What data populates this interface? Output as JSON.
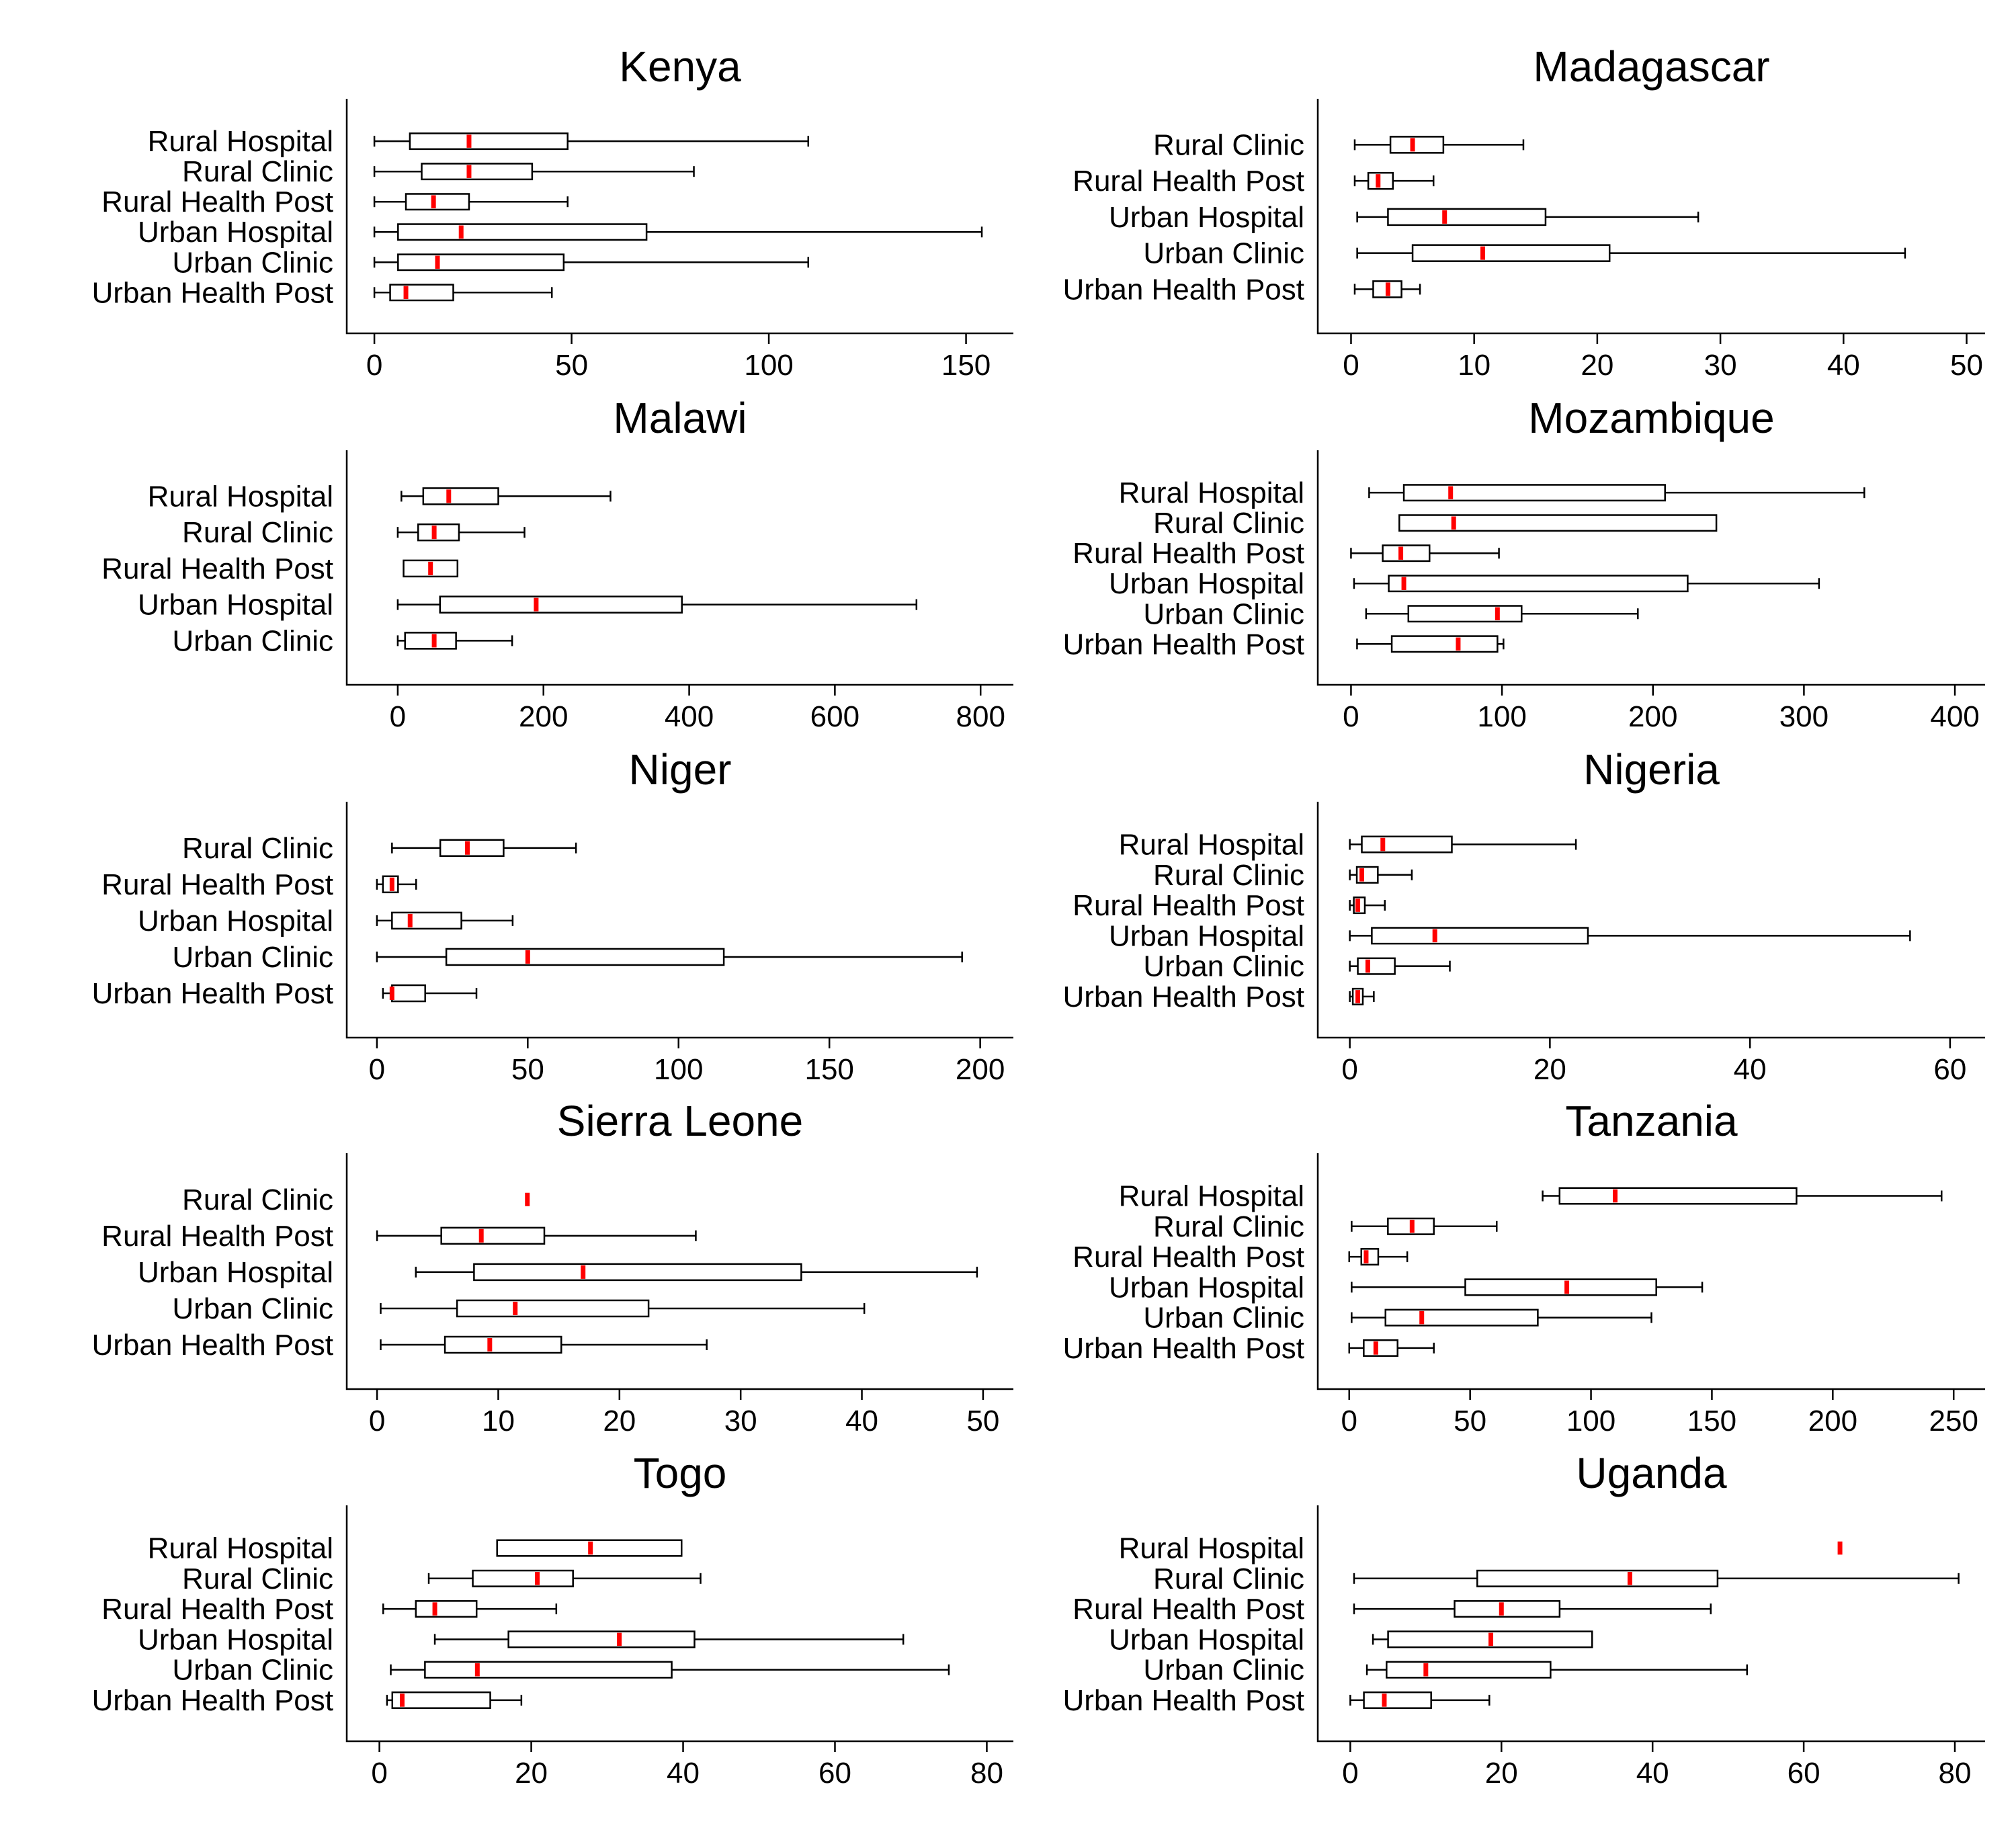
{
  "colors": {
    "median": "#ff0000",
    "box_stroke": "#000000",
    "axis": "#000000",
    "background": "#ffffff"
  },
  "chart_data": [
    {
      "type": "boxplot",
      "title": "Kenya",
      "xticks": [
        0,
        50,
        100,
        150
      ],
      "xlim": [
        -7,
        162
      ],
      "orientation": "horizontal",
      "categories": [
        "Rural Hospital",
        "Rural Clinic",
        "Rural Health Post",
        "Urban Hospital",
        "Urban Clinic",
        "Urban Health Post"
      ],
      "boxes": [
        {
          "label": "Rural Hospital",
          "min": 0,
          "q1": 9,
          "median": 24,
          "q3": 49,
          "max": 110
        },
        {
          "label": "Rural Clinic",
          "min": 0,
          "q1": 12,
          "median": 24,
          "q3": 40,
          "max": 81
        },
        {
          "label": "Rural Health Post",
          "min": 0,
          "q1": 8,
          "median": 15,
          "q3": 24,
          "max": 49
        },
        {
          "label": "Urban Hospital",
          "min": 0,
          "q1": 6,
          "median": 22,
          "q3": 69,
          "max": 154
        },
        {
          "label": "Urban Clinic",
          "min": 0,
          "q1": 6,
          "median": 16,
          "q3": 48,
          "max": 110
        },
        {
          "label": "Urban Health Post",
          "min": 0,
          "q1": 4,
          "median": 8,
          "q3": 20,
          "max": 45
        }
      ]
    },
    {
      "type": "boxplot",
      "title": "Madagascar",
      "xticks": [
        0,
        10,
        20,
        30,
        40,
        50
      ],
      "xlim": [
        -2.7,
        51.5
      ],
      "orientation": "horizontal",
      "categories": [
        "Rural Clinic",
        "Rural Health Post",
        "Urban Hospital",
        "Urban Clinic",
        "Urban Health Post"
      ],
      "boxes": [
        {
          "label": "Rural Clinic",
          "min": 0.3,
          "q1": 3.2,
          "median": 5,
          "q3": 7.5,
          "max": 14
        },
        {
          "label": "Rural Health Post",
          "min": 0.3,
          "q1": 1.4,
          "median": 2.2,
          "q3": 3.4,
          "max": 6.7
        },
        {
          "label": "Urban Hospital",
          "min": 0.5,
          "q1": 3,
          "median": 7.6,
          "q3": 15.8,
          "max": 28.2
        },
        {
          "label": "Urban Clinic",
          "min": 0.5,
          "q1": 5,
          "median": 10.7,
          "q3": 21,
          "max": 45
        },
        {
          "label": "Urban Health Post",
          "min": 0.3,
          "q1": 1.8,
          "median": 3,
          "q3": 4.1,
          "max": 5.6
        }
      ]
    },
    {
      "type": "boxplot",
      "title": "Malawi",
      "xticks": [
        0,
        200,
        400,
        600,
        800
      ],
      "xlim": [
        -70,
        845
      ],
      "orientation": "horizontal",
      "categories": [
        "Rural Hospital",
        "Rural Clinic",
        "Rural Health Post",
        "Urban Hospital",
        "Urban Clinic"
      ],
      "boxes": [
        {
          "label": "Rural Hospital",
          "min": 5,
          "q1": 35,
          "median": 70,
          "q3": 138,
          "max": 292
        },
        {
          "label": "Rural Clinic",
          "min": 0,
          "q1": 28,
          "median": 50,
          "q3": 84,
          "max": 174
        },
        {
          "label": "Rural Health Post",
          "min": 8,
          "q1": 8,
          "median": 45,
          "q3": 82,
          "max": 82
        },
        {
          "label": "Urban Hospital",
          "min": 0,
          "q1": 58,
          "median": 190,
          "q3": 390,
          "max": 712
        },
        {
          "label": "Urban Clinic",
          "min": 0,
          "q1": 10,
          "median": 50,
          "q3": 80,
          "max": 157
        }
      ]
    },
    {
      "type": "boxplot",
      "title": "Mozambique",
      "xticks": [
        0,
        100,
        200,
        300,
        400
      ],
      "xlim": [
        -22,
        420
      ],
      "orientation": "horizontal",
      "categories": [
        "Rural Hospital",
        "Rural Clinic",
        "Rural Health Post",
        "Urban Hospital",
        "Urban Clinic",
        "Urban Health Post"
      ],
      "boxes": [
        {
          "label": "Rural Hospital",
          "min": 12,
          "q1": 35,
          "median": 66,
          "q3": 208,
          "max": 340
        },
        {
          "label": "Rural Clinic",
          "min": 32,
          "q1": 32,
          "median": 68,
          "q3": 242,
          "max": 242
        },
        {
          "label": "Rural Health Post",
          "min": 0,
          "q1": 21,
          "median": 33,
          "q3": 52,
          "max": 98
        },
        {
          "label": "Urban Hospital",
          "min": 2,
          "q1": 25,
          "median": 35,
          "q3": 223,
          "max": 310
        },
        {
          "label": "Urban Clinic",
          "min": 10,
          "q1": 38,
          "median": 97,
          "q3": 113,
          "max": 190
        },
        {
          "label": "Urban Health Post",
          "min": 4,
          "q1": 27,
          "median": 71,
          "q3": 97,
          "max": 101
        }
      ]
    },
    {
      "type": "boxplot",
      "title": "Niger",
      "xticks": [
        0,
        50,
        100,
        150,
        200
      ],
      "xlim": [
        -10,
        211
      ],
      "orientation": "horizontal",
      "categories": [
        "Rural Clinic",
        "Rural Health Post",
        "Urban Hospital",
        "Urban Clinic",
        "Urban Health Post"
      ],
      "boxes": [
        {
          "label": "Rural Clinic",
          "min": 5,
          "q1": 21,
          "median": 30,
          "q3": 42,
          "max": 66
        },
        {
          "label": "Rural Health Post",
          "min": 0,
          "q1": 2,
          "median": 5,
          "q3": 7,
          "max": 13
        },
        {
          "label": "Urban Hospital",
          "min": 0,
          "q1": 5,
          "median": 11,
          "q3": 28,
          "max": 45
        },
        {
          "label": "Urban Clinic",
          "min": 0,
          "q1": 23,
          "median": 50,
          "q3": 115,
          "max": 194
        },
        {
          "label": "Urban Health Post",
          "min": 2,
          "q1": 5,
          "median": 5,
          "q3": 16,
          "max": 33
        }
      ]
    },
    {
      "type": "boxplot",
      "title": "Nigeria",
      "xticks": [
        0,
        20,
        40,
        60
      ],
      "xlim": [
        -3.2,
        63.5
      ],
      "orientation": "horizontal",
      "categories": [
        "Rural Hospital",
        "Rural Clinic",
        "Rural Health Post",
        "Urban Hospital",
        "Urban Clinic",
        "Urban Health Post"
      ],
      "boxes": [
        {
          "label": "Rural Hospital",
          "min": 0,
          "q1": 1.2,
          "median": 3.3,
          "q3": 10.2,
          "max": 22.6
        },
        {
          "label": "Rural Clinic",
          "min": 0,
          "q1": 0.7,
          "median": 1.2,
          "q3": 2.8,
          "max": 6.2
        },
        {
          "label": "Rural Health Post",
          "min": 0,
          "q1": 0.4,
          "median": 0.8,
          "q3": 1.5,
          "max": 3.5
        },
        {
          "label": "Urban Hospital",
          "min": 0,
          "q1": 2.2,
          "median": 8.5,
          "q3": 23.8,
          "max": 56
        },
        {
          "label": "Urban Clinic",
          "min": 0,
          "q1": 0.8,
          "median": 1.8,
          "q3": 4.5,
          "max": 10
        },
        {
          "label": "Urban Health Post",
          "min": 0,
          "q1": 0.3,
          "median": 0.8,
          "q3": 1.3,
          "max": 2.4
        }
      ]
    },
    {
      "type": "boxplot",
      "title": "Sierra Leone",
      "xticks": [
        0,
        10,
        20,
        30,
        40,
        50
      ],
      "xlim": [
        -2.5,
        52.5
      ],
      "orientation": "horizontal",
      "categories": [
        "Rural Clinic",
        "Rural Health Post",
        "Urban Hospital",
        "Urban Clinic",
        "Urban Health Post"
      ],
      "boxes": [
        {
          "label": "Rural Clinic",
          "min": 12.4,
          "q1": 12.4,
          "median": 12.4,
          "q3": 12.4,
          "max": 12.4
        },
        {
          "label": "Rural Health Post",
          "min": 0,
          "q1": 5.3,
          "median": 8.6,
          "q3": 13.8,
          "max": 26.3
        },
        {
          "label": "Urban Hospital",
          "min": 3.2,
          "q1": 8,
          "median": 17,
          "q3": 35,
          "max": 49.5
        },
        {
          "label": "Urban Clinic",
          "min": 0.3,
          "q1": 6.6,
          "median": 11.4,
          "q3": 22.4,
          "max": 40.2
        },
        {
          "label": "Urban Health Post",
          "min": 0.3,
          "q1": 5.6,
          "median": 9.3,
          "q3": 15.2,
          "max": 27.2
        }
      ]
    },
    {
      "type": "boxplot",
      "title": "Tanzania",
      "xticks": [
        0,
        50,
        100,
        150,
        200,
        250
      ],
      "xlim": [
        -13,
        263
      ],
      "orientation": "horizontal",
      "categories": [
        "Rural Hospital",
        "Rural Clinic",
        "Rural Health Post",
        "Urban Hospital",
        "Urban Clinic",
        "Urban Health Post"
      ],
      "boxes": [
        {
          "label": "Rural Hospital",
          "min": 80,
          "q1": 87,
          "median": 110,
          "q3": 185,
          "max": 245
        },
        {
          "label": "Rural Clinic",
          "min": 1,
          "q1": 16,
          "median": 26,
          "q3": 35,
          "max": 61
        },
        {
          "label": "Rural Health Post",
          "min": 0,
          "q1": 5,
          "median": 7,
          "q3": 12,
          "max": 24
        },
        {
          "label": "Urban Hospital",
          "min": 1,
          "q1": 48,
          "median": 90,
          "q3": 127,
          "max": 146
        },
        {
          "label": "Urban Clinic",
          "min": 1,
          "q1": 15,
          "median": 30,
          "q3": 78,
          "max": 125
        },
        {
          "label": "Urban Health Post",
          "min": 0,
          "q1": 6,
          "median": 11,
          "q3": 20,
          "max": 35
        }
      ]
    },
    {
      "type": "boxplot",
      "title": "Togo",
      "xticks": [
        0,
        20,
        40,
        60,
        80
      ],
      "xlim": [
        -4.3,
        83.5
      ],
      "orientation": "horizontal",
      "categories": [
        "Rural Hospital",
        "Rural Clinic",
        "Rural Health Post",
        "Urban Hospital",
        "Urban Clinic",
        "Urban Health Post"
      ],
      "boxes": [
        {
          "label": "Rural Hospital",
          "min": 15.5,
          "q1": 15.5,
          "median": 27.8,
          "q3": 39.8,
          "max": 39.8
        },
        {
          "label": "Rural Clinic",
          "min": 6.5,
          "q1": 12.3,
          "median": 20.8,
          "q3": 25.5,
          "max": 42.3
        },
        {
          "label": "Rural Health Post",
          "min": 0.5,
          "q1": 4.8,
          "median": 7.3,
          "q3": 12.8,
          "max": 23.3
        },
        {
          "label": "Urban Hospital",
          "min": 7.3,
          "q1": 17,
          "median": 31.6,
          "q3": 41.5,
          "max": 69
        },
        {
          "label": "Urban Clinic",
          "min": 1.5,
          "q1": 6,
          "median": 12.9,
          "q3": 38.5,
          "max": 75
        },
        {
          "label": "Urban Health Post",
          "min": 1,
          "q1": 1.7,
          "median": 3,
          "q3": 14.6,
          "max": 18.7
        }
      ]
    },
    {
      "type": "boxplot",
      "title": "Uganda",
      "xticks": [
        0,
        20,
        40,
        60,
        80
      ],
      "xlim": [
        -4.3,
        84
      ],
      "orientation": "horizontal",
      "categories": [
        "Rural Hospital",
        "Rural Clinic",
        "Rural Health Post",
        "Urban Hospital",
        "Urban Clinic",
        "Urban Health Post"
      ],
      "boxes": [
        {
          "label": "Rural Hospital",
          "min": 64.8,
          "q1": 64.8,
          "median": 64.8,
          "q3": 64.8,
          "max": 64.8
        },
        {
          "label": "Rural Clinic",
          "min": 0.5,
          "q1": 16.8,
          "median": 37,
          "q3": 48.6,
          "max": 80.5
        },
        {
          "label": "Rural Health Post",
          "min": 0.5,
          "q1": 13.8,
          "median": 20,
          "q3": 27.7,
          "max": 47.7
        },
        {
          "label": "Urban Hospital",
          "min": 3,
          "q1": 5,
          "median": 18.6,
          "q3": 32,
          "max": 32
        },
        {
          "label": "Urban Clinic",
          "min": 2.2,
          "q1": 4.8,
          "median": 10,
          "q3": 26.5,
          "max": 52.5
        },
        {
          "label": "Urban Health Post",
          "min": 0,
          "q1": 1.8,
          "median": 4.5,
          "q3": 10.7,
          "max": 18.4
        }
      ]
    }
  ]
}
